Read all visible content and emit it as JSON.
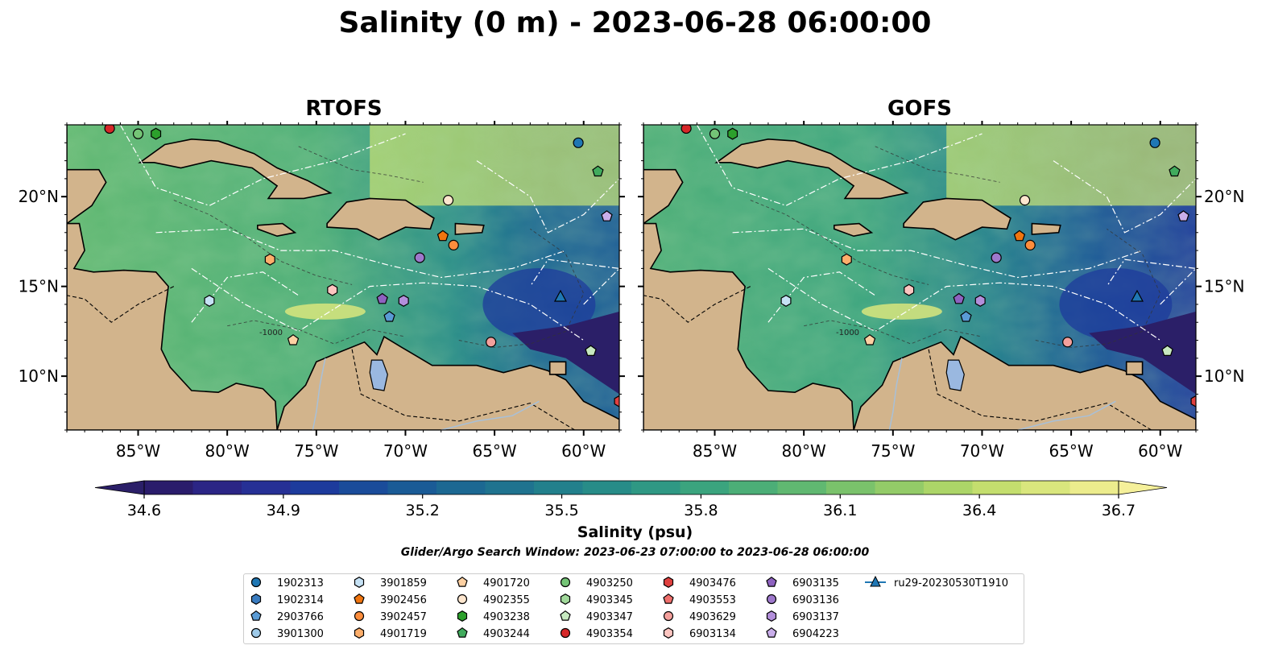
{
  "figure": {
    "title": "Salinity (0 m) - 2023-06-28 06:00:00",
    "search_window": "Glider/Argo Search Window: 2023-06-23 07:00:00 to 2023-06-28 06:00:00"
  },
  "panels": [
    {
      "title": "RTOFS"
    },
    {
      "title": "GOFS"
    }
  ],
  "axes": {
    "x_ticks": [
      "85°W",
      "80°W",
      "75°W",
      "70°W",
      "65°W",
      "60°W"
    ],
    "x_tick_values": [
      -85,
      -80,
      -75,
      -70,
      -65,
      -60
    ],
    "y_ticks": [
      "20°N",
      "15°N",
      "10°N"
    ],
    "y_tick_values": [
      20,
      15,
      10
    ],
    "lon_range": [
      -89,
      -58
    ],
    "lat_range": [
      7,
      24
    ]
  },
  "colorbar": {
    "label": "Salinity (psu)",
    "ticks": [
      "34.6",
      "34.9",
      "35.2",
      "35.5",
      "35.8",
      "36.1",
      "36.4",
      "36.7"
    ],
    "range": [
      34.6,
      36.7
    ],
    "colors": [
      "#2a1c6b",
      "#2b2585",
      "#263095",
      "#1d3b9c",
      "#1a4c9a",
      "#1a5b96",
      "#1c6892",
      "#1f738f",
      "#22808c",
      "#278c88",
      "#2f9884",
      "#3ba47e",
      "#4cae77",
      "#60b871",
      "#7ac26b",
      "#93cb68",
      "#acd568",
      "#c4de6e",
      "#d9e67d",
      "#ecec8d"
    ],
    "extend": "both"
  },
  "map_colors": {
    "land": "#d2b48c",
    "deep_ocean": "#2b1f68",
    "lake": "#9ab8e0"
  },
  "legend": {
    "entries": [
      {
        "id": "1902313",
        "marker": "circle",
        "color": "#1f77b4"
      },
      {
        "id": "1902314",
        "marker": "hexagon",
        "color": "#3a7cc0"
      },
      {
        "id": "2903766",
        "marker": "pentagon",
        "color": "#5a9bd5"
      },
      {
        "id": "3901300",
        "marker": "circle",
        "color": "#9ecae9"
      },
      {
        "id": "3901859",
        "marker": "hexagon",
        "color": "#c6e2f5"
      },
      {
        "id": "3902456",
        "marker": "pentagon",
        "color": "#f0750f"
      },
      {
        "id": "3902457",
        "marker": "circle",
        "color": "#fd8d3c"
      },
      {
        "id": "4901719",
        "marker": "hexagon",
        "color": "#fdae6b"
      },
      {
        "id": "4901720",
        "marker": "pentagon",
        "color": "#fdd0a2"
      },
      {
        "id": "4902355",
        "marker": "circle",
        "color": "#fee6ce"
      },
      {
        "id": "4903238",
        "marker": "hexagon",
        "color": "#2ca02c"
      },
      {
        "id": "4903244",
        "marker": "pentagon",
        "color": "#41ab5d"
      },
      {
        "id": "4903250",
        "marker": "circle",
        "color": "#74c476"
      },
      {
        "id": "4903345",
        "marker": "hexagon",
        "color": "#a1d99b"
      },
      {
        "id": "4903347",
        "marker": "pentagon",
        "color": "#c7e9c0"
      },
      {
        "id": "4903354",
        "marker": "circle",
        "color": "#d62728"
      },
      {
        "id": "4903476",
        "marker": "hexagon",
        "color": "#e0403f"
      },
      {
        "id": "4903553",
        "marker": "pentagon",
        "color": "#ef6f6c"
      },
      {
        "id": "4903629",
        "marker": "circle",
        "color": "#f4a09c"
      },
      {
        "id": "6903134",
        "marker": "hexagon",
        "color": "#fcc5c0"
      },
      {
        "id": "6903135",
        "marker": "pentagon",
        "color": "#8e62c0"
      },
      {
        "id": "6903136",
        "marker": "circle",
        "color": "#9e78cc"
      },
      {
        "id": "6903137",
        "marker": "hexagon",
        "color": "#b38fdb"
      },
      {
        "id": "6904223",
        "marker": "pentagon",
        "color": "#c9aeea"
      },
      {
        "id": "ru29-20230530T1910",
        "marker": "triangle-line",
        "color": "#1f77b4"
      }
    ]
  },
  "floats": [
    {
      "id": "1902313",
      "lon": -60.3,
      "lat": 23.0
    },
    {
      "id": "4903244",
      "lon": -59.2,
      "lat": 21.4
    },
    {
      "id": "6904223",
      "lon": -58.7,
      "lat": 18.9
    },
    {
      "id": "4902355",
      "lon": -67.6,
      "lat": 19.8
    },
    {
      "id": "3902456",
      "lon": -67.9,
      "lat": 17.8
    },
    {
      "id": "3902457",
      "lon": -67.3,
      "lat": 17.3
    },
    {
      "id": "6903136",
      "lon": -69.2,
      "lat": 16.6
    },
    {
      "id": "4901719",
      "lon": -77.6,
      "lat": 16.5
    },
    {
      "id": "3901859",
      "lon": -81.0,
      "lat": 14.2
    },
    {
      "id": "6903134",
      "lon": -74.1,
      "lat": 14.8
    },
    {
      "id": "6903135",
      "lon": -71.3,
      "lat": 14.3
    },
    {
      "id": "6903137",
      "lon": -70.1,
      "lat": 14.2
    },
    {
      "id": "2903766",
      "lon": -70.9,
      "lat": 13.3
    },
    {
      "id": "4901720",
      "lon": -76.3,
      "lat": 12.0
    },
    {
      "id": "4903629",
      "lon": -65.2,
      "lat": 11.9
    },
    {
      "id": "4903347",
      "lon": -59.6,
      "lat": 11.4
    },
    {
      "id": "4903476",
      "lon": -58.0,
      "lat": 8.6
    },
    {
      "id": "4903250",
      "lon": -85.0,
      "lat": 23.5
    },
    {
      "id": "4903238",
      "lon": -84.0,
      "lat": 23.5
    },
    {
      "id": "4903354",
      "lon": -86.6,
      "lat": 23.8
    }
  ],
  "glider": {
    "id": "ru29-20230530T1910",
    "lon": -61.3,
    "lat": 14.4
  },
  "contour_label": "-1000"
}
